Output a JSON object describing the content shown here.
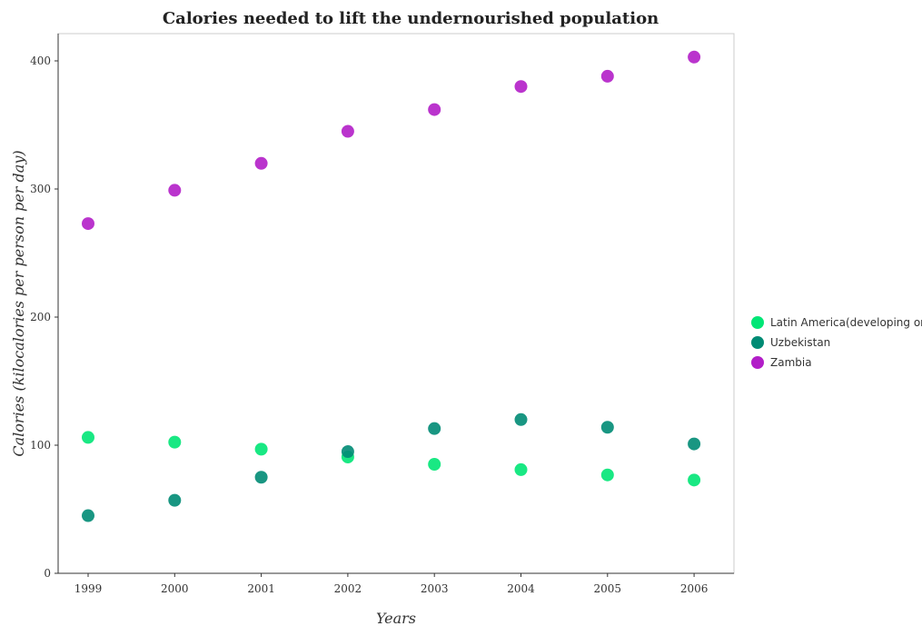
{
  "chart_data": {
    "type": "scatter",
    "title": "Calories needed to lift the undernourished population",
    "xlabel": "Years",
    "ylabel": "Calories (kilocalories per person per day)",
    "categories": [
      "1999",
      "2000",
      "2001",
      "2002",
      "2003",
      "2004",
      "2005",
      "2006"
    ],
    "ylim": [
      0,
      420
    ],
    "yticks": [
      0,
      100,
      200,
      300,
      400
    ],
    "grid": false,
    "legend_position": "right",
    "series": [
      {
        "name": "Latin America(developing only)",
        "color": "#00e676",
        "values": [
          106.1,
          102.4,
          96.9,
          90.8,
          85.1,
          80.9,
          76.8,
          72.8
        ]
      },
      {
        "name": "Uzbekistan",
        "color": "#008b74",
        "values": [
          45,
          57,
          75,
          95,
          113,
          120,
          114,
          101
        ]
      },
      {
        "name": "Zambia",
        "color": "#b21ec8",
        "values": [
          273,
          299,
          320,
          345,
          362,
          380,
          388,
          403
        ]
      }
    ]
  }
}
